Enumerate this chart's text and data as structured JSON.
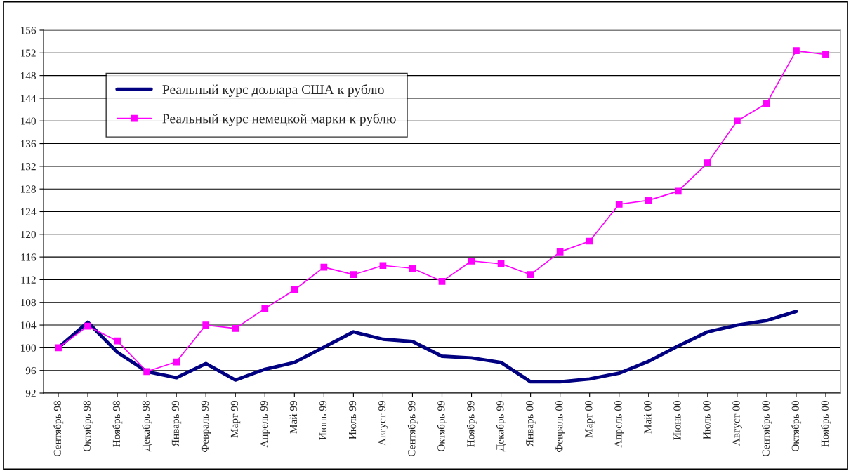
{
  "chart_data": {
    "type": "line",
    "categories": [
      "Сентябрь 98",
      "Октябрь 98",
      "Ноябрь 98",
      "Декабрь 98",
      "Январь 99",
      "Февраль 99",
      "Март 99",
      "Апрель 99",
      "Май 99",
      "Июнь 99",
      "Июль 99",
      "Август 99",
      "Сентябрь 99",
      "Октябрь 99",
      "Ноябрь 99",
      "Декабрь 99",
      "Январь 00",
      "Февраль 00",
      "Март 00",
      "Апрель 00",
      "Май 00",
      "Июнь 00",
      "Июль 00",
      "Август 00",
      "Сентябрь 00",
      "Октябрь 00",
      "Ноябрь 00"
    ],
    "series": [
      {
        "name": "Реальный курс доллара США к рублю",
        "color": "#000080",
        "marker": "none",
        "values": [
          100,
          104.5,
          99.2,
          95.8,
          94.7,
          97.2,
          94.3,
          96.2,
          97.4,
          100.1,
          102.8,
          101.5,
          101.1,
          98.5,
          98.2,
          97.4,
          94.0,
          94.0,
          94.5,
          95.5,
          97.6,
          100.3,
          102.8,
          104.0,
          104.8,
          106.4,
          null
        ]
      },
      {
        "name": "Реальный курс немецкой марки к рублю",
        "color": "#ff00ff",
        "marker": "square",
        "values": [
          100,
          103.8,
          101.2,
          95.8,
          97.5,
          104.0,
          103.4,
          106.9,
          110.2,
          114.2,
          112.9,
          114.5,
          114.0,
          111.7,
          115.3,
          114.8,
          112.9,
          116.9,
          118.8,
          125.3,
          126.0,
          127.6,
          132.6,
          140.0,
          143.1,
          152.4,
          151.7
        ]
      }
    ],
    "ylim": [
      92,
      156
    ],
    "yticks": [
      92,
      96,
      100,
      104,
      108,
      112,
      116,
      120,
      124,
      128,
      132,
      136,
      140,
      144,
      148,
      152,
      156
    ],
    "grid": "y",
    "legend": "top left"
  }
}
